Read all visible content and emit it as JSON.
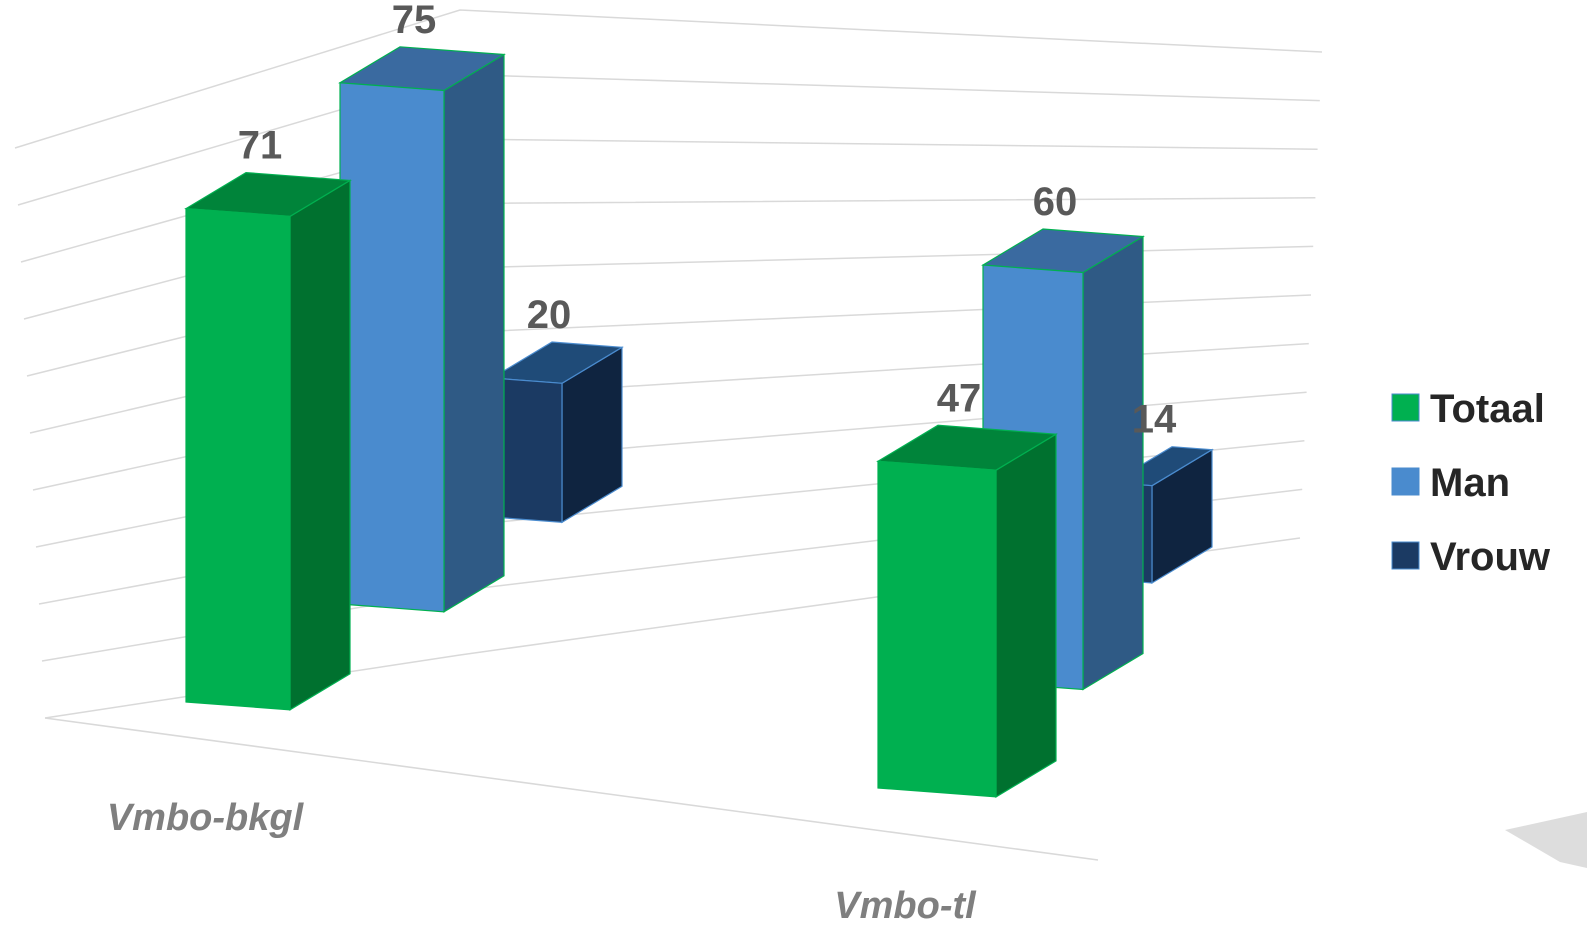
{
  "chart_data": {
    "type": "bar",
    "subtype": "3d-clustered-column",
    "categories": [
      "Vmbo-bkgl",
      "Vmbo-tl"
    ],
    "series": [
      {
        "name": "Totaal",
        "values": [
          71,
          47
        ],
        "color": "#00b050",
        "side_color": "#00712f",
        "top_color": "#00843a"
      },
      {
        "name": "Man",
        "values": [
          75,
          60
        ],
        "color": "#4a8bce",
        "side_color": "#2f5a85",
        "top_color": "#3a6aa0"
      },
      {
        "name": "Vrouw",
        "values": [
          20,
          14
        ],
        "color": "#1b3a63",
        "side_color": "#0f2440",
        "top_color": "#1f4b78"
      }
    ],
    "data_labels": true,
    "grid": true,
    "legend_position": "right",
    "title": "",
    "xlabel": "",
    "ylabel": ""
  }
}
